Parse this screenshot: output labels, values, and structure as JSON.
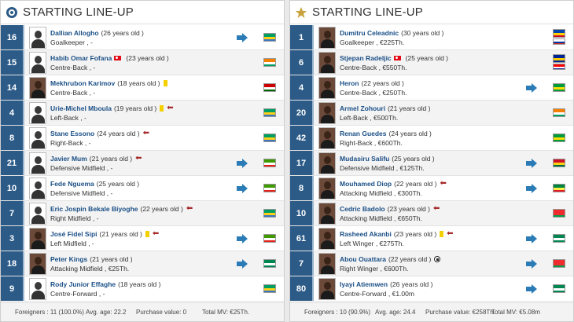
{
  "left": {
    "title": "STARTING LINE-UP",
    "crest_icon": "club-crest-icon",
    "players": [
      {
        "number": "16",
        "name": "Dallian Allogho",
        "age": "(26 years old )",
        "position": "Goalkeeper , -",
        "flag": "gabon",
        "joined": true,
        "photo": false
      },
      {
        "number": "15",
        "name": "Habib Omar Fofana",
        "age": "(23 years old )",
        "position": "Centre-Back , -",
        "flag": "ivory-coast",
        "joined": false,
        "photo": false,
        "second_flag": "turkey"
      },
      {
        "number": "14",
        "name": "Mekhrubon Karimov",
        "age": "(18 years old )",
        "position": "Centre-Back , -",
        "flag": "tajikistan",
        "joined": false,
        "photo": true,
        "yellow": true
      },
      {
        "number": "4",
        "name": "Urie-Michel Mboula",
        "age": "(19 years old )",
        "position": "Left-Back , -",
        "flag": "gabon",
        "joined": false,
        "photo": false,
        "yellow": true,
        "sub": true
      },
      {
        "number": "8",
        "name": "Stane Essono",
        "age": "(24 years old )",
        "position": "Right-Back , -",
        "flag": "gabon",
        "joined": false,
        "photo": false,
        "sub": true
      },
      {
        "number": "21",
        "name": "Javier Mum",
        "age": "(21 years old )",
        "position": "Defensive Midfield , -",
        "flag": "equatorial-guinea",
        "joined": true,
        "photo": false,
        "sub": true
      },
      {
        "number": "10",
        "name": "Fede Nguema",
        "age": "(25 years old )",
        "position": "Defensive Midfield , -",
        "flag": "equatorial-guinea",
        "joined": true,
        "photo": false
      },
      {
        "number": "7",
        "name": "Eric Jospin Bekale Biyoghe",
        "age": "(22 years old )",
        "position": "Right Midfield , -",
        "flag": "gabon",
        "joined": false,
        "photo": false,
        "sub": true
      },
      {
        "number": "3",
        "name": "José Fidel Sipi",
        "age": "(21 years old )",
        "position": "Left Midfield , -",
        "flag": "equatorial-guinea",
        "joined": true,
        "photo": true,
        "yellow": true,
        "sub": true
      },
      {
        "number": "18",
        "name": "Peter Kings",
        "age": "(21 years old )",
        "position": "Attacking Midfield , €25Th.",
        "flag": "nigeria",
        "joined": true,
        "photo": true
      },
      {
        "number": "9",
        "name": "Rody Junior Effaghe",
        "age": "(18 years old )",
        "position": "Centre-Forward , -",
        "flag": "gabon",
        "joined": false,
        "photo": false
      }
    ],
    "footer": {
      "foreigners": "Foreigners : 11 (100.0%)",
      "avg_age": "Avg. age: 22.2",
      "purchase": "Purchase value: 0",
      "total_mv": "Total MV: €25Th."
    }
  },
  "right": {
    "title": "STARTING LINE-UP",
    "crest_icon": "star-crest-icon",
    "players": [
      {
        "number": "1",
        "name": "Dumitru Celeadnic",
        "age": "(30 years old )",
        "position": "Goalkeeper , €225Th.",
        "flag": "moldova",
        "joined": false,
        "photo": true,
        "second_flag": "russia"
      },
      {
        "number": "6",
        "name": "Stjepan Radeljic",
        "age": "(25 years old )",
        "position": "Centre-Back , €550Th.",
        "flag": "bosnia",
        "joined": false,
        "photo": true,
        "second_flag": "croatia",
        "inline_flag": "turkey"
      },
      {
        "number": "4",
        "name": "Heron",
        "age": "(22 years old )",
        "position": "Centre-Back , €250Th.",
        "flag": "brazil",
        "joined": true,
        "photo": true
      },
      {
        "number": "20",
        "name": "Armel Zohouri",
        "age": "(21 years old )",
        "position": "Left-Back , €500Th.",
        "flag": "ivory-coast",
        "joined": false,
        "photo": true
      },
      {
        "number": "42",
        "name": "Renan Guedes",
        "age": "(24 years old )",
        "position": "Right-Back , €600Th.",
        "flag": "brazil",
        "joined": false,
        "photo": true
      },
      {
        "number": "17",
        "name": "Mudasiru Salifu",
        "age": "(25 years old )",
        "position": "Defensive Midfield , €125Th.",
        "flag": "ghana",
        "joined": true,
        "photo": true
      },
      {
        "number": "8",
        "name": "Mouhamed Diop",
        "age": "(22 years old )",
        "position": "Attacking Midfield , €300Th.",
        "flag": "senegal",
        "joined": true,
        "photo": true,
        "sub": true
      },
      {
        "number": "10",
        "name": "Cedric Badolo",
        "age": "(23 years old )",
        "position": "Attacking Midfield , €650Th.",
        "flag": "burkina-faso",
        "joined": false,
        "photo": true,
        "sub": true
      },
      {
        "number": "61",
        "name": "Rasheed Akanbi",
        "age": "(23 years old )",
        "position": "Left Winger , €275Th.",
        "flag": "nigeria",
        "joined": true,
        "photo": true,
        "yellow": true,
        "sub": true
      },
      {
        "number": "7",
        "name": "Abou Ouattara",
        "age": "(22 years old )",
        "position": "Right Winger , €600Th.",
        "flag": "burkina-faso",
        "joined": true,
        "photo": true,
        "ball": true
      },
      {
        "number": "80",
        "name": "Iyayi Atiemwen",
        "age": "(26 years old )",
        "position": "Centre-Forward , €1.00m",
        "flag": "nigeria",
        "joined": true,
        "photo": true
      }
    ],
    "footer": {
      "foreigners": "Foreigners : 10 (90.9%)",
      "avg_age": "Avg. age: 24.4",
      "purchase": "Purchase value: €258Th.",
      "total_mv": "Total MV: €5.08m"
    }
  },
  "flag_colors": {
    "gabon": [
      "#009e60",
      "#fcd116",
      "#3a75c4"
    ],
    "ivory-coast": [
      "#f77f00",
      "#ffffff",
      "#009e60"
    ],
    "tajikistan": [
      "#cc0000",
      "#ffffff",
      "#006600"
    ],
    "equatorial-guinea": [
      "#3e9a00",
      "#ffffff",
      "#e32118"
    ],
    "nigeria": [
      "#008751",
      "#ffffff",
      "#008751"
    ],
    "moldova": [
      "#0046ae",
      "#ffd200",
      "#cc092f"
    ],
    "russia": [
      "#ffffff",
      "#0039a6",
      "#d52b1e"
    ],
    "bosnia": [
      "#002395",
      "#fecb00",
      "#002395"
    ],
    "croatia": [
      "#ff0000",
      "#ffffff",
      "#171796"
    ],
    "brazil": [
      "#009b3a",
      "#fedf00",
      "#009b3a"
    ],
    "ghana": [
      "#ce1126",
      "#fcd116",
      "#006b3f"
    ],
    "senegal": [
      "#00853f",
      "#fdef42",
      "#e31b23"
    ],
    "burkina-faso": [
      "#ef2b2d",
      "#ef2b2d",
      "#009e49"
    ],
    "turkey": [
      "#e30a17",
      "#e30a17",
      "#e30a17"
    ]
  }
}
